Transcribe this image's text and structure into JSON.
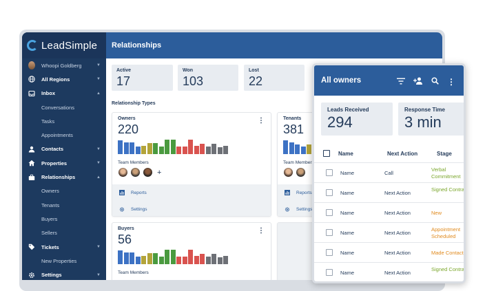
{
  "app": {
    "name": "LeadSimple",
    "page_title": "Relationships"
  },
  "colors": {
    "sidebar": "#1d3a5f",
    "header": "#2c5d9b",
    "stage_green": "#7aa62b",
    "stage_orange": "#e08a1e",
    "bar_blue": "#3d72c4",
    "bar_green": "#4a9a3f",
    "bar_olive": "#b3a43a",
    "bar_red": "#d9534f",
    "bar_grey": "#6d7076"
  },
  "sidebar": {
    "user": "Whoopi Goldberg",
    "items": [
      {
        "label": "All Regions",
        "icon": "globe-icon"
      },
      {
        "label": "Inbox",
        "icon": "inbox-icon"
      },
      {
        "label": "Conversations"
      },
      {
        "label": "Tasks"
      },
      {
        "label": "Appointments"
      },
      {
        "label": "Contacts",
        "icon": "person-icon"
      },
      {
        "label": "Properties",
        "icon": "home-icon"
      },
      {
        "label": "Relationships",
        "icon": "briefcase-icon"
      },
      {
        "label": "Owners"
      },
      {
        "label": "Tenants"
      },
      {
        "label": "Buyers"
      },
      {
        "label": "Sellers"
      },
      {
        "label": "Tickets",
        "icon": "tag-icon"
      },
      {
        "label": "New Properties"
      },
      {
        "label": "Settings",
        "icon": "gear-icon"
      }
    ]
  },
  "stats": [
    {
      "label": "Active",
      "value": "17"
    },
    {
      "label": "Won",
      "value": "103"
    },
    {
      "label": "Lost",
      "value": "22"
    }
  ],
  "section_title": "Relationship Types",
  "cards": [
    {
      "title": "Owners",
      "value": "220",
      "team_label": "Team Members",
      "reports": "Reports",
      "settings": "Settings"
    },
    {
      "title": "Tenants",
      "value": "381",
      "team_label": "Team Members",
      "reports": "Reports",
      "settings": "Settings"
    },
    {
      "title": "Buyers",
      "value": "56",
      "team_label": "Team Members"
    }
  ],
  "overlay": {
    "title": "All owners",
    "leads_label": "Leads Received",
    "leads_value": "294",
    "response_label": "Response Time",
    "response_value": "3 min",
    "columns": [
      "Name",
      "Next Action",
      "Stage"
    ],
    "rows": [
      {
        "name": "Name",
        "action": "Call",
        "stage": "Verbal Commitment",
        "stage_color": "green"
      },
      {
        "name": "Name",
        "action": "Next Action",
        "stage": "Signed Contract",
        "stage_color": "green"
      },
      {
        "name": "Name",
        "action": "Next Action",
        "stage": "New",
        "stage_color": "orange"
      },
      {
        "name": "Name",
        "action": "Next Action",
        "stage": "Appointment Scheduled",
        "stage_color": "orange"
      },
      {
        "name": "Name",
        "action": "Next Action",
        "stage": "Made Contact",
        "stage_color": "orange"
      },
      {
        "name": "Name",
        "action": "Next Action",
        "stage": "Signed Contract",
        "stage_color": "green"
      }
    ]
  }
}
